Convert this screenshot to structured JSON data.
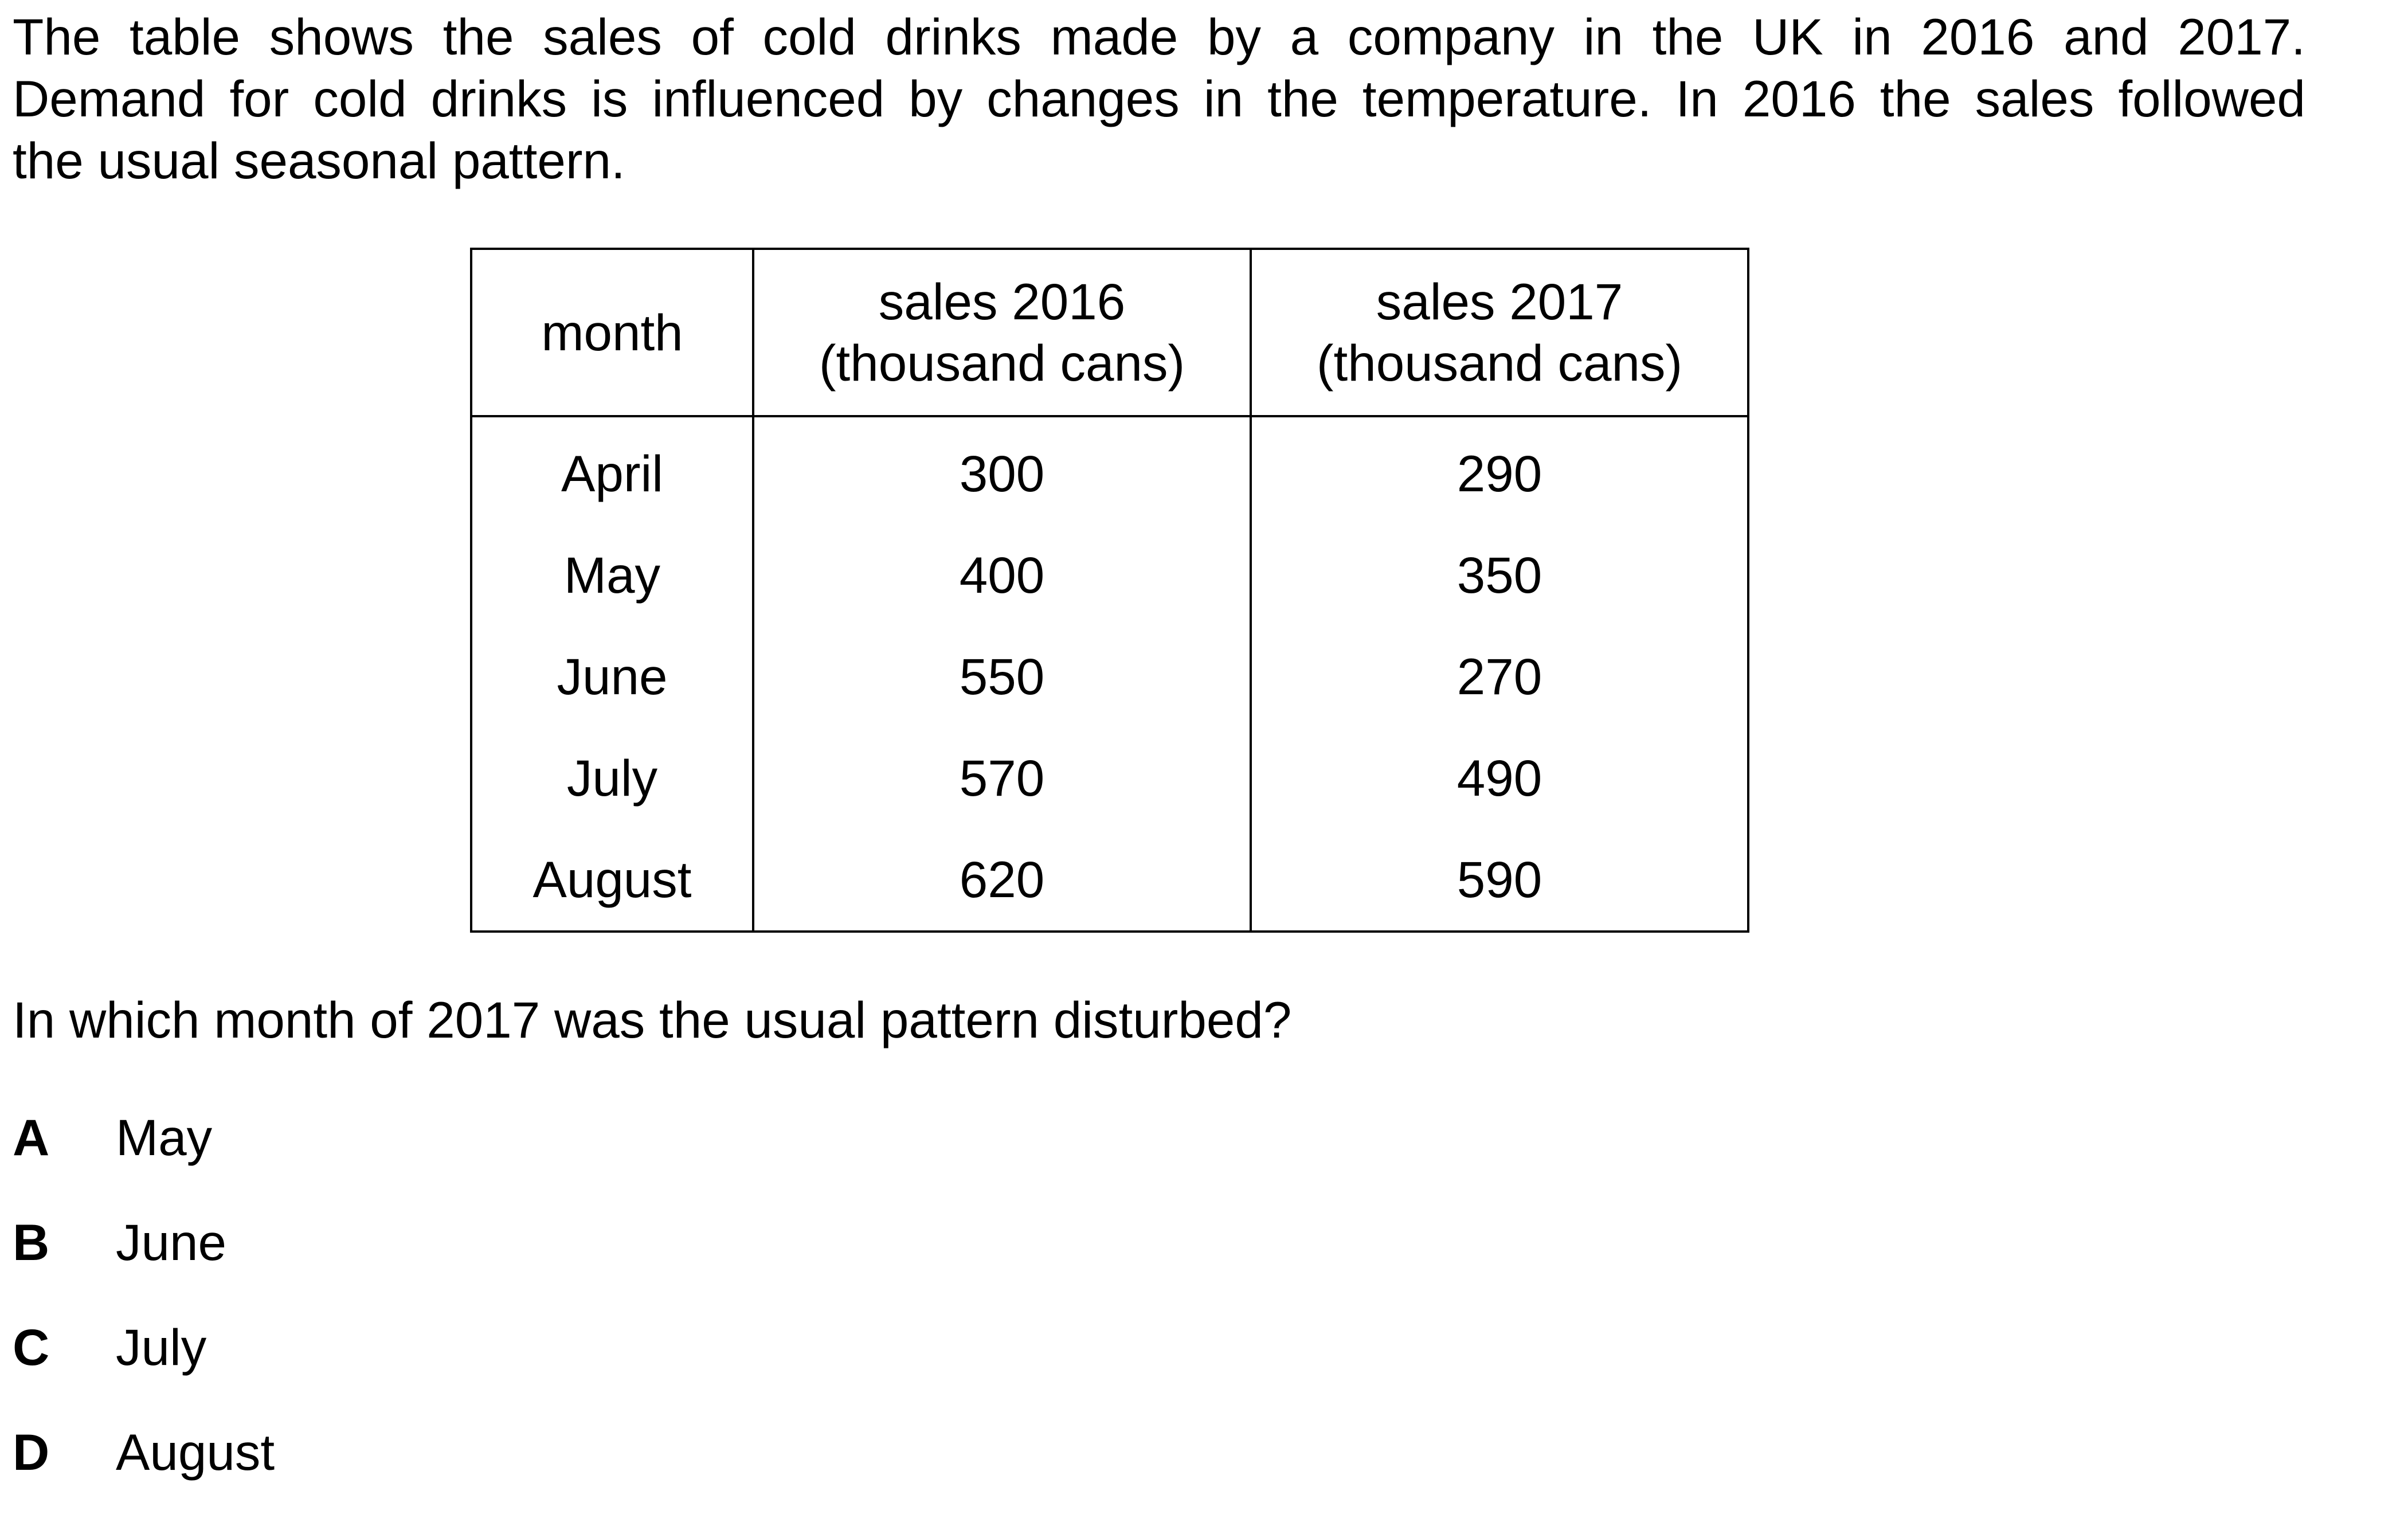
{
  "intro": {
    "line1": "The table shows the sales of cold drinks made by a company in the UK in 2016 and 2017.",
    "line2": "Demand for cold drinks is influenced by changes in the temperature. In 2016 the sales followed",
    "line3": "the usual seasonal pattern."
  },
  "table": {
    "headers": {
      "month": "month",
      "sales_2016_line1": "sales 2016",
      "sales_2016_line2": "(thousand cans)",
      "sales_2017_line1": "sales 2017",
      "sales_2017_line2": "(thousand cans)"
    },
    "rows": [
      {
        "month": "April",
        "sales_2016": "300",
        "sales_2017": "290"
      },
      {
        "month": "May",
        "sales_2016": "400",
        "sales_2017": "350"
      },
      {
        "month": "June",
        "sales_2016": "550",
        "sales_2017": "270"
      },
      {
        "month": "July",
        "sales_2016": "570",
        "sales_2017": "490"
      },
      {
        "month": "August",
        "sales_2016": "620",
        "sales_2017": "590"
      }
    ]
  },
  "question": "In which month of 2017 was the usual pattern disturbed?",
  "options": [
    {
      "letter": "A",
      "text": "May"
    },
    {
      "letter": "B",
      "text": "June"
    },
    {
      "letter": "C",
      "text": "July"
    },
    {
      "letter": "D",
      "text": "August"
    }
  ]
}
